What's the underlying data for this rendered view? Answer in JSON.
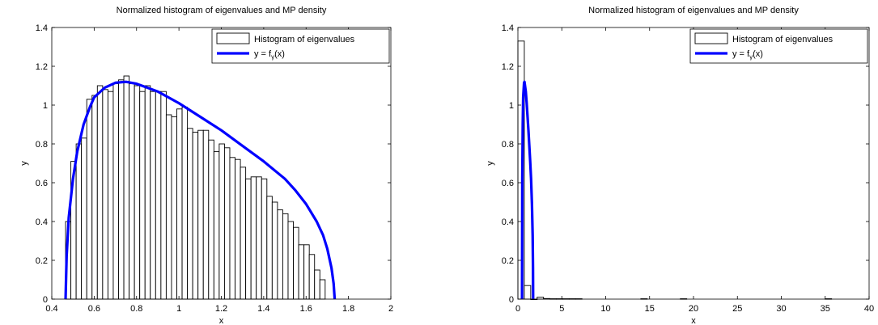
{
  "chart_data": [
    {
      "type": "bar",
      "title": "Normalized histogram of eigenvalues and MP density",
      "xlabel": "x",
      "ylabel": "y",
      "xlim": [
        0.4,
        2
      ],
      "ylim": [
        0,
        1.4
      ],
      "xticks": [
        "0.4",
        "0.6",
        "0.8",
        "1",
        "1.2",
        "1.4",
        "1.6",
        "1.8",
        "2"
      ],
      "yticks": [
        "0",
        "0.2",
        "0.4",
        "0.6",
        "0.8",
        "1",
        "1.2",
        "1.4"
      ],
      "legend": {
        "position": "top-right",
        "histogram_label": "Histogram of eigenvalues",
        "curve_label_prefix": "y = f",
        "curve_label_sub": "γ",
        "curve_label_suffix": "(x)"
      },
      "histogram": {
        "bin_start": 0.465,
        "bin_width": 0.025,
        "values": [
          0.4,
          0.71,
          0.8,
          0.83,
          1.03,
          1.05,
          1.1,
          1.08,
          1.07,
          1.11,
          1.13,
          1.15,
          1.11,
          1.1,
          1.07,
          1.1,
          1.07,
          1.07,
          1.07,
          0.95,
          0.94,
          0.98,
          0.99,
          0.88,
          0.86,
          0.87,
          0.87,
          0.82,
          0.76,
          0.8,
          0.78,
          0.73,
          0.72,
          0.68,
          0.62,
          0.63,
          0.63,
          0.62,
          0.53,
          0.5,
          0.46,
          0.44,
          0.4,
          0.37,
          0.28,
          0.28,
          0.23,
          0.15,
          0.1,
          0.0
        ],
        "fill": "#ffffff",
        "stroke": "#000000"
      },
      "curve": {
        "x": [
          0.465,
          0.47,
          0.48,
          0.5,
          0.52,
          0.55,
          0.58,
          0.6,
          0.65,
          0.7,
          0.75,
          0.8,
          0.85,
          0.9,
          1.0,
          1.1,
          1.2,
          1.3,
          1.4,
          1.5,
          1.55,
          1.6,
          1.65,
          1.68,
          1.7,
          1.72,
          1.73,
          1.735
        ],
        "y": [
          0.0,
          0.22,
          0.42,
          0.62,
          0.76,
          0.9,
          0.99,
          1.04,
          1.09,
          1.115,
          1.12,
          1.11,
          1.09,
          1.07,
          1.01,
          0.94,
          0.87,
          0.79,
          0.71,
          0.62,
          0.56,
          0.49,
          0.4,
          0.33,
          0.26,
          0.16,
          0.08,
          0.0
        ],
        "color": "#0000ff"
      },
      "grid": false
    },
    {
      "type": "bar",
      "title": "Normalized histogram of eigenvalues and MP density",
      "xlabel": "x",
      "ylabel": "y",
      "xlim": [
        0,
        40
      ],
      "ylim": [
        0,
        1.4
      ],
      "xticks": [
        "0",
        "5",
        "10",
        "15",
        "20",
        "25",
        "30",
        "35",
        "40"
      ],
      "yticks": [
        "0",
        "0.2",
        "0.4",
        "0.6",
        "0.8",
        "1",
        "1.2",
        "1.4"
      ],
      "legend": {
        "position": "top-right",
        "histogram_label": "Histogram of eigenvalues",
        "curve_label_prefix": "y = f",
        "curve_label_sub": "γ",
        "curve_label_suffix": "(x)"
      },
      "histogram": {
        "bins": [
          {
            "x0": 0.0,
            "x1": 0.73,
            "value": 1.33
          },
          {
            "x0": 0.73,
            "x1": 1.46,
            "value": 0.07
          },
          {
            "x0": 1.46,
            "x1": 2.19,
            "value": 0.0
          },
          {
            "x0": 2.19,
            "x1": 2.92,
            "value": 0.01
          },
          {
            "x0": 2.92,
            "x1": 3.65,
            "value": 0.003
          },
          {
            "x0": 3.65,
            "x1": 4.38,
            "value": 0.002
          },
          {
            "x0": 4.38,
            "x1": 5.11,
            "value": 0.002
          },
          {
            "x0": 5.11,
            "x1": 5.84,
            "value": 0.002
          },
          {
            "x0": 5.84,
            "x1": 6.57,
            "value": 0.002
          },
          {
            "x0": 6.57,
            "x1": 7.3,
            "value": 0.002
          },
          {
            "x0": 14.0,
            "x1": 14.73,
            "value": 0.002
          },
          {
            "x0": 18.5,
            "x1": 19.23,
            "value": 0.002
          },
          {
            "x0": 35.0,
            "x1": 35.73,
            "value": 0.002
          }
        ],
        "fill": "#ffffff",
        "stroke": "#000000"
      },
      "curve": {
        "x": [
          0.47,
          0.5,
          0.55,
          0.6,
          0.7,
          0.75,
          0.9,
          1.0,
          1.1,
          1.2,
          1.3,
          1.4,
          1.5,
          1.6,
          1.68,
          1.72,
          1.735
        ],
        "y": [
          0.0,
          0.62,
          0.9,
          1.04,
          1.115,
          1.12,
          1.07,
          1.01,
          0.94,
          0.87,
          0.79,
          0.71,
          0.62,
          0.49,
          0.33,
          0.16,
          0.0
        ],
        "color": "#0000ff"
      },
      "grid": false
    }
  ]
}
